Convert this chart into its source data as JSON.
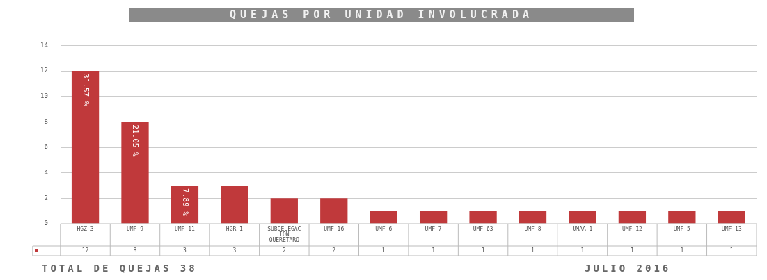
{
  "chart_data": {
    "type": "bar",
    "title": "QUEJAS POR UNIDAD INVOLUCRADA",
    "categories": [
      "HGZ 3",
      "UMF 9",
      "UMF 11",
      "HGR 1",
      "SUBDELEGACION QUERETARO",
      "UMF 16",
      "UMF 6",
      "UMF 7",
      "UMF 63",
      "UMF 8",
      "UMAA 1",
      "UMF 12",
      "UMF 5",
      "UMF 13"
    ],
    "series": [
      {
        "color": "#c0393b",
        "values": [
          12,
          8,
          3,
          3,
          2,
          2,
          1,
          1,
          1,
          1,
          1,
          1,
          1,
          1
        ]
      }
    ],
    "ylim": [
      0,
      14
    ],
    "yticks": [
      0,
      2,
      4,
      6,
      8,
      10,
      12,
      14
    ],
    "grid": "y",
    "data_labels": true,
    "legend": false,
    "annotations": [
      "TOTAL DE QUEJAS 38",
      "JULIO 2016",
      {
        "text": "31.57 %",
        "x": "HGZ 3",
        "y": 12
      },
      {
        "text": "21.05 %",
        "x": "UMF 9",
        "y": 8
      },
      {
        "text": "7.89 %",
        "x": "UMF 11",
        "y": 3
      }
    ]
  }
}
